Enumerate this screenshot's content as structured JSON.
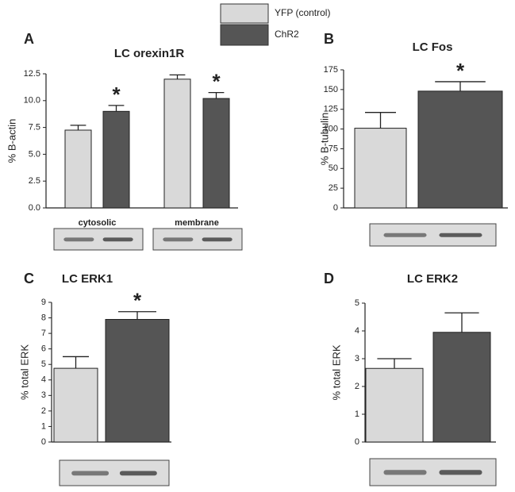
{
  "legend": {
    "entries": [
      {
        "name": "YFP (control)",
        "color": "#d9d9d9"
      },
      {
        "name": "ChR2",
        "color": "#555555"
      }
    ]
  },
  "chart_data": [
    {
      "type": "bar",
      "panel": "A",
      "title": "LC orexin1R",
      "y_label": "% B-actin",
      "categories": [
        "cytosolic",
        "membrane"
      ],
      "series": [
        {
          "color": "#d9d9d9",
          "values": [
            7.25,
            12.0
          ],
          "errors": [
            0.45,
            0.4
          ]
        },
        {
          "color": "#555555",
          "values": [
            9.0,
            10.2
          ],
          "errors": [
            0.55,
            0.55
          ],
          "significance": [
            "*",
            "*"
          ]
        }
      ],
      "ylim": [
        0,
        12.5
      ],
      "yticks": [
        {
          "value": 0,
          "label": "0.0"
        },
        2.5,
        {
          "value": 5,
          "label": "5.0"
        },
        7.5,
        {
          "value": 10,
          "label": "10.0"
        },
        12.5
      ]
    },
    {
      "type": "bar",
      "panel": "B",
      "title": "LC Fos",
      "y_label": "% B-tubulin",
      "categories": [
        null
      ],
      "series": [
        {
          "color": "#d9d9d9",
          "values": [
            101
          ],
          "errors": [
            20
          ]
        },
        {
          "color": "#555555",
          "values": [
            148
          ],
          "errors": [
            12
          ],
          "significance": [
            "*"
          ]
        }
      ],
      "ylim": [
        0,
        175
      ],
      "yticks": [
        0,
        25,
        50,
        75,
        100,
        125,
        150,
        175
      ]
    },
    {
      "type": "bar",
      "panel": "C",
      "title": "LC ERK1",
      "y_label": "% total ERK",
      "categories": [
        null
      ],
      "series": [
        {
          "color": "#d9d9d9",
          "values": [
            4.75
          ],
          "errors": [
            0.75
          ]
        },
        {
          "color": "#555555",
          "values": [
            7.9
          ],
          "errors": [
            0.5
          ],
          "significance": [
            "*"
          ]
        }
      ],
      "ylim": [
        0,
        9
      ],
      "yticks": [
        0,
        1,
        2,
        3,
        4,
        5,
        6,
        7,
        8,
        9
      ]
    },
    {
      "type": "bar",
      "panel": "D",
      "title": "LC ERK2",
      "y_label": "% total ERK",
      "categories": [
        null
      ],
      "series": [
        {
          "color": "#d9d9d9",
          "values": [
            2.65
          ],
          "errors": [
            0.35
          ]
        },
        {
          "color": "#555555",
          "values": [
            3.95
          ],
          "errors": [
            0.7
          ]
        }
      ],
      "ylim": [
        0,
        5
      ],
      "yticks": [
        0,
        1,
        2,
        3,
        4,
        5
      ]
    }
  ]
}
